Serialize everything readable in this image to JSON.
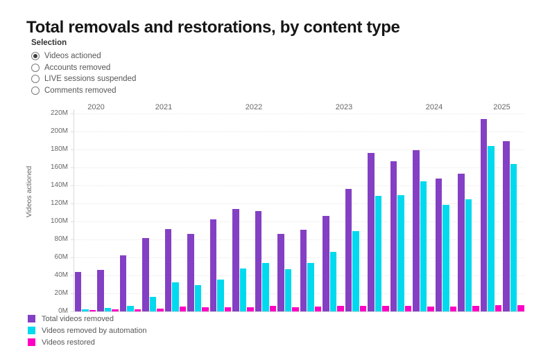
{
  "title": "Total removals and restorations, by content type",
  "selection": {
    "label": "Selection",
    "selected_index": 0,
    "options": [
      {
        "label": "Videos actioned"
      },
      {
        "label": "Accounts removed"
      },
      {
        "label": "LIVE sessions suspended"
      },
      {
        "label": "Comments removed"
      }
    ]
  },
  "chart_data": {
    "type": "bar",
    "ylabel": "Videos actioned",
    "ylim": [
      0,
      220
    ],
    "ytick_step": 20,
    "ytick_suffix": "M",
    "grid": true,
    "legend_position": "bottom-left",
    "categories": [
      "2020 Q3",
      "2020 Q4",
      "2021 Q1",
      "2021 Q2",
      "2021 Q3",
      "2021 Q4",
      "2022 Q1",
      "2022 Q2",
      "2022 Q3",
      "2022 Q4",
      "2023 Q1",
      "2023 Q2",
      "2023 Q3",
      "2023 Q4",
      "2024 Q1",
      "2024 Q2",
      "2024 Q3",
      "2024 Q4",
      "2025 Q1",
      "2025 Q2"
    ],
    "year_axis": [
      {
        "label": "2020",
        "quarters": 2
      },
      {
        "label": "2021",
        "quarters": 4
      },
      {
        "label": "2022",
        "quarters": 4
      },
      {
        "label": "2023",
        "quarters": 4
      },
      {
        "label": "2024",
        "quarters": 4
      },
      {
        "label": "2025",
        "quarters": 2
      }
    ],
    "series": [
      {
        "name": "Total videos removed",
        "color": "#8440C4",
        "values": [
          43.5,
          46.5,
          62,
          81.5,
          91.5,
          86,
          102.5,
          114,
          111.5,
          86,
          91,
          106.5,
          136.5,
          176.5,
          167,
          179,
          147.5,
          153,
          214,
          189.5
        ]
      },
      {
        "name": "Videos removed by automation",
        "color": "#00D9EE",
        "values": [
          2.5,
          3.5,
          6.5,
          16.5,
          32,
          29.5,
          35.5,
          48,
          53.5,
          47,
          53.5,
          66.5,
          89,
          128.5,
          129.5,
          144.5,
          118.5,
          125,
          184,
          163.5
        ]
      },
      {
        "name": "Videos restored",
        "color": "#FF00C3",
        "values": [
          1.5,
          2,
          2.5,
          3,
          5.5,
          4.5,
          4.5,
          5,
          6,
          5,
          5.5,
          6,
          6.5,
          6.5,
          6,
          5.5,
          5.5,
          6,
          7,
          7
        ]
      }
    ],
    "unit": "M"
  }
}
